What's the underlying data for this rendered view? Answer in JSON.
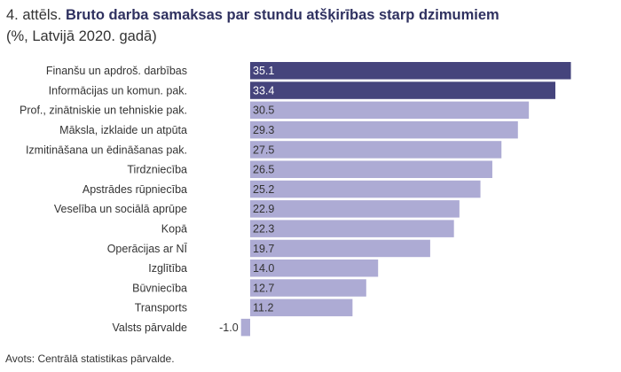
{
  "figure": {
    "prefix": "4. attēls.",
    "title": "Bruto darba samaksas par stundu atšķirības starp dzimumiem",
    "subtitle": "(%, Latvijā 2020. gadā)",
    "source": "Avots: Centrālā statistikas pārvalde."
  },
  "colors": {
    "highlight": "#45447c",
    "bar": "#adabd4",
    "highlight_label": "#ffffff",
    "bar_label": "#333333"
  },
  "chart_data": {
    "type": "bar",
    "orientation": "horizontal",
    "title": "Bruto darba samaksas par stundu atšķirības starp dzimumiem",
    "subtitle": "(%, Latvijā 2020. gadā)",
    "categories": [
      "Finanšu un apdroš. darbības",
      "Informācijas un komun. pak.",
      "Prof., zinātniskie un tehniskie pak.",
      "Māksla, izklaide un atpūta",
      "Izmitināšana un ēdināšanas pak.",
      "Tirdzniecība",
      "Apstrādes rūpniecība",
      "Veselība un sociālā aprūpe",
      "Kopā",
      "Operācijas ar NĪ",
      "Izglītība",
      "Būvniecība",
      "Transports",
      "Valsts pārvalde"
    ],
    "values": [
      35.1,
      33.4,
      30.5,
      29.3,
      27.5,
      26.5,
      25.2,
      22.9,
      22.3,
      19.7,
      14.0,
      12.7,
      11.2,
      -1.0
    ],
    "value_labels": [
      "35.1",
      "33.4",
      "30.5",
      "29.3",
      "27.5",
      "26.5",
      "25.2",
      "22.9",
      "22.3",
      "19.7",
      "14.0",
      "12.7",
      "11.2",
      "-1.0"
    ],
    "highlighted": [
      true,
      true,
      false,
      false,
      false,
      false,
      false,
      false,
      false,
      false,
      false,
      false,
      false,
      false
    ],
    "xlim": [
      -1.0,
      35.1
    ],
    "grid": false,
    "legend": "none"
  }
}
